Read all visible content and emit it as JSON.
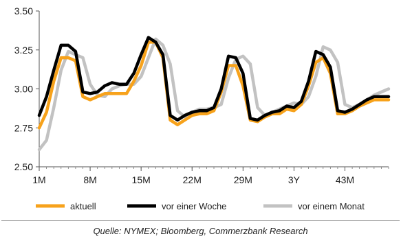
{
  "chart_data": {
    "type": "line",
    "title": "",
    "xlabel": "",
    "ylabel": "",
    "ylim": [
      2.5,
      3.5
    ],
    "yticks": [
      "3.50",
      "3.25",
      "3.00",
      "2.75",
      "2.50"
    ],
    "ytick_values": [
      3.5,
      3.25,
      3.0,
      2.75,
      2.5
    ],
    "x_tick_labels": [
      "1M",
      "8M",
      "15M",
      "22M",
      "29M",
      "3Y",
      "43M"
    ],
    "x_tick_months": [
      1,
      8,
      15,
      22,
      29,
      36,
      43
    ],
    "x_range": [
      1,
      49
    ],
    "x": [
      1,
      2,
      3,
      4,
      5,
      6,
      7,
      8,
      9,
      10,
      11,
      12,
      13,
      14,
      15,
      16,
      17,
      18,
      19,
      20,
      21,
      22,
      23,
      24,
      25,
      26,
      27,
      28,
      29,
      30,
      31,
      32,
      33,
      34,
      35,
      36,
      37,
      38,
      39,
      40,
      41,
      42,
      43,
      44,
      45,
      46,
      47,
      48,
      49
    ],
    "legend_position": "bottom",
    "series": [
      {
        "name": "aktuell",
        "color": "#f7a21b",
        "values": [
          2.75,
          2.85,
          3.05,
          3.2,
          3.2,
          3.18,
          2.95,
          2.93,
          2.95,
          2.97,
          2.97,
          2.97,
          2.97,
          3.05,
          3.15,
          3.3,
          3.3,
          3.2,
          2.8,
          2.77,
          2.8,
          2.83,
          2.84,
          2.84,
          2.86,
          2.98,
          3.15,
          3.15,
          3.02,
          2.8,
          2.79,
          2.82,
          2.84,
          2.84,
          2.87,
          2.86,
          2.9,
          3.02,
          3.17,
          3.2,
          3.1,
          2.84,
          2.84,
          2.86,
          2.89,
          2.91,
          2.93,
          2.93,
          2.93
        ]
      },
      {
        "name": "vor einer Woche",
        "color": "#000000",
        "values": [
          2.83,
          2.95,
          3.12,
          3.28,
          3.28,
          3.24,
          2.98,
          2.97,
          2.98,
          3.02,
          3.04,
          3.03,
          3.03,
          3.1,
          3.22,
          3.33,
          3.3,
          3.22,
          2.83,
          2.8,
          2.83,
          2.85,
          2.86,
          2.86,
          2.88,
          3.0,
          3.21,
          3.2,
          3.1,
          2.81,
          2.8,
          2.83,
          2.85,
          2.86,
          2.89,
          2.88,
          2.92,
          3.05,
          3.24,
          3.22,
          3.14,
          2.86,
          2.85,
          2.87,
          2.9,
          2.93,
          2.95,
          2.95,
          2.95
        ]
      },
      {
        "name": "vor einem Monat",
        "color": "#c2c2c2",
        "values": [
          2.61,
          2.67,
          2.88,
          3.12,
          3.24,
          3.22,
          3.2,
          3.03,
          2.96,
          2.95,
          3.0,
          3.02,
          3.03,
          3.03,
          3.08,
          3.2,
          3.32,
          3.28,
          3.16,
          2.86,
          2.82,
          2.85,
          2.87,
          2.87,
          2.88,
          2.9,
          3.07,
          3.19,
          3.21,
          3.16,
          2.88,
          2.83,
          2.85,
          2.87,
          2.89,
          2.91,
          2.9,
          2.95,
          3.08,
          3.27,
          3.25,
          3.17,
          2.9,
          2.88,
          2.9,
          2.93,
          2.96,
          2.98,
          3.0
        ]
      }
    ]
  },
  "source_note": "Quelle: NYMEX; Bloomberg, Commerzbank Research"
}
